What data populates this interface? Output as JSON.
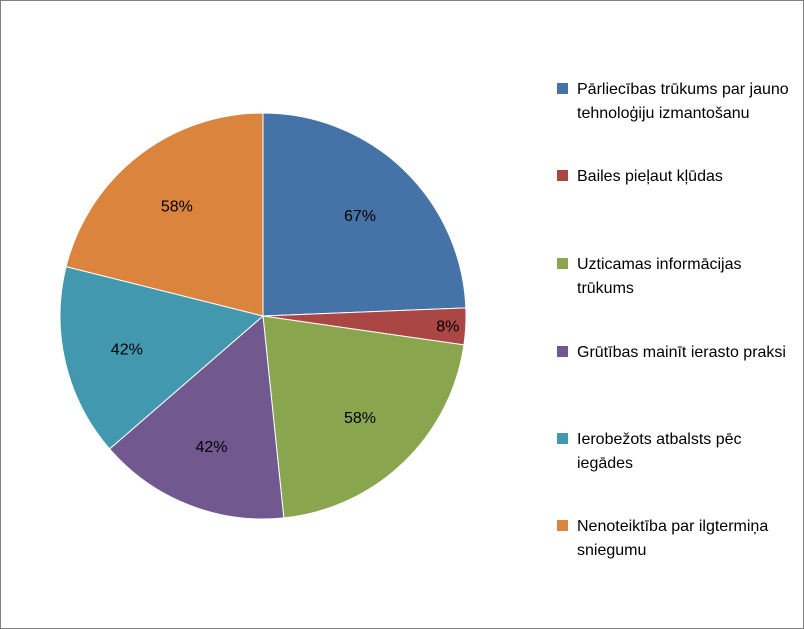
{
  "chart_data": {
    "type": "pie",
    "title": "",
    "legend_position": "right",
    "slices": [
      {
        "label": "Pārliecības trūkums par jauno tehnoloģiju izmantošanu",
        "value": 67,
        "display": "67%",
        "color": "#4572A7"
      },
      {
        "label": "Bailes pieļaut kļūdas",
        "value": 8,
        "display": "8%",
        "color": "#AA4643"
      },
      {
        "label": "Uzticamas informācijas trūkums",
        "value": 58,
        "display": "58%",
        "color": "#89A54E"
      },
      {
        "label": "Grūtības mainīt ierasto praksi",
        "value": 42,
        "display": "42%",
        "color": "#71588F"
      },
      {
        "label": "Ierobežots atbalsts pēc iegādes",
        "value": 42,
        "display": "42%",
        "color": "#4198AF"
      },
      {
        "label": "Nenoteiktība par ilgtermiņa sniegumu",
        "value": 58,
        "display": "58%",
        "color": "#DB843D"
      }
    ]
  }
}
